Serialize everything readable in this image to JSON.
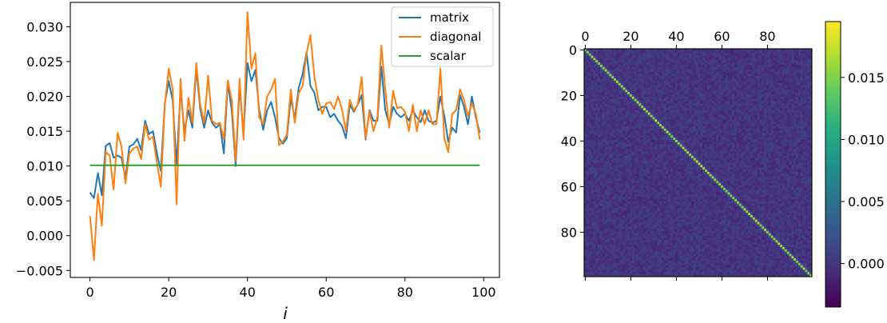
{
  "chart_data": [
    {
      "type": "line",
      "xlabel": "i",
      "ylabel": "",
      "xlim": [
        -5,
        104
      ],
      "ylim": [
        -0.006,
        0.0335
      ],
      "xticks": [
        "0",
        "20",
        "40",
        "60",
        "80",
        "100"
      ],
      "yticks": [
        "−0.005",
        "0.000",
        "0.005",
        "0.010",
        "0.015",
        "0.020",
        "0.025",
        "0.030"
      ],
      "grid": false,
      "legend_position": "top-right",
      "x": [
        0,
        1,
        2,
        3,
        4,
        5,
        6,
        7,
        8,
        9,
        10,
        11,
        12,
        13,
        14,
        15,
        16,
        17,
        18,
        19,
        20,
        21,
        22,
        23,
        24,
        25,
        26,
        27,
        28,
        29,
        30,
        31,
        32,
        33,
        34,
        35,
        36,
        37,
        38,
        39,
        40,
        41,
        42,
        43,
        44,
        45,
        46,
        47,
        48,
        49,
        50,
        51,
        52,
        53,
        54,
        55,
        56,
        57,
        58,
        59,
        60,
        61,
        62,
        63,
        64,
        65,
        66,
        67,
        68,
        69,
        70,
        71,
        72,
        73,
        74,
        75,
        76,
        77,
        78,
        79,
        80,
        81,
        82,
        83,
        84,
        85,
        86,
        87,
        88,
        89,
        90,
        91,
        92,
        93,
        94,
        95,
        96,
        97,
        98,
        99
      ],
      "series": [
        {
          "name": "matrix",
          "color": "#1f77b4",
          "values": [
            0.0062,
            0.0054,
            0.009,
            0.0058,
            0.0129,
            0.0133,
            0.0112,
            0.0115,
            0.0112,
            0.0083,
            0.0128,
            0.0131,
            0.0139,
            0.0123,
            0.0165,
            0.0146,
            0.015,
            0.0118,
            0.0093,
            0.019,
            0.0222,
            0.0194,
            0.0102,
            0.021,
            0.015,
            0.018,
            0.0155,
            0.024,
            0.0182,
            0.0155,
            0.018,
            0.0162,
            0.0155,
            0.016,
            0.0118,
            0.022,
            0.018,
            0.01,
            0.0215,
            0.0145,
            0.0248,
            0.0222,
            0.0238,
            0.018,
            0.0152,
            0.018,
            0.0192,
            0.017,
            0.014,
            0.0132,
            0.014,
            0.0198,
            0.0168,
            0.0212,
            0.0232,
            0.0263,
            0.0215,
            0.0205,
            0.018,
            0.0185,
            0.0185,
            0.017,
            0.0175,
            0.0165,
            0.0158,
            0.014,
            0.0188,
            0.0178,
            0.0188,
            0.0202,
            0.0138,
            0.018,
            0.0165,
            0.0165,
            0.0243,
            0.018,
            0.016,
            0.0185,
            0.0175,
            0.017,
            0.0175,
            0.0165,
            0.018,
            0.017,
            0.0163,
            0.018,
            0.0165,
            0.0162,
            0.0165,
            0.02,
            0.0172,
            0.0135,
            0.0155,
            0.0148,
            0.0202,
            0.0185,
            0.016,
            0.02,
            0.017,
            0.0148
          ]
        },
        {
          "name": "diagonal",
          "color": "#ff7f0e",
          "values": [
            0.0028,
            -0.0035,
            0.006,
            0.0014,
            0.012,
            0.0115,
            0.0066,
            0.0148,
            0.0128,
            0.0075,
            0.0118,
            0.0125,
            0.0128,
            0.011,
            0.016,
            0.0138,
            0.0142,
            0.0105,
            0.007,
            0.0188,
            0.024,
            0.021,
            0.0045,
            0.0225,
            0.0136,
            0.0198,
            0.0162,
            0.0248,
            0.0188,
            0.0162,
            0.023,
            0.0165,
            0.016,
            0.0162,
            0.0138,
            0.0223,
            0.0195,
            0.0107,
            0.0225,
            0.0138,
            0.0321,
            0.024,
            0.0262,
            0.017,
            0.016,
            0.02,
            0.021,
            0.0225,
            0.013,
            0.0135,
            0.0145,
            0.021,
            0.0162,
            0.0205,
            0.0215,
            0.0262,
            0.0288,
            0.0228,
            0.0195,
            0.0175,
            0.019,
            0.0192,
            0.0182,
            0.02,
            0.0182,
            0.015,
            0.0195,
            0.018,
            0.0188,
            0.0228,
            0.014,
            0.0178,
            0.015,
            0.017,
            0.0273,
            0.021,
            0.0155,
            0.0208,
            0.0183,
            0.0185,
            0.0178,
            0.015,
            0.0188,
            0.015,
            0.018,
            0.016,
            0.018,
            0.016,
            0.016,
            0.024,
            0.014,
            0.012,
            0.0175,
            0.018,
            0.021,
            0.0195,
            0.0172,
            0.019,
            0.0175,
            0.0138
          ]
        },
        {
          "name": "scalar",
          "color": "#2ca02c",
          "values": [
            0.0101,
            0.0101,
            0.0101,
            0.0101,
            0.0101,
            0.0101,
            0.0101,
            0.0101,
            0.0101,
            0.0101,
            0.0101,
            0.0101,
            0.0101,
            0.0101,
            0.0101,
            0.0101,
            0.0101,
            0.0101,
            0.0101,
            0.0101,
            0.0101,
            0.0101,
            0.0101,
            0.0101,
            0.0101,
            0.0101,
            0.0101,
            0.0101,
            0.0101,
            0.0101,
            0.0101,
            0.0101,
            0.0101,
            0.0101,
            0.0101,
            0.0101,
            0.0101,
            0.0101,
            0.0101,
            0.0101,
            0.0101,
            0.0101,
            0.0101,
            0.0101,
            0.0101,
            0.0101,
            0.0101,
            0.0101,
            0.0101,
            0.0101,
            0.0101,
            0.0101,
            0.0101,
            0.0101,
            0.0101,
            0.0101,
            0.0101,
            0.0101,
            0.0101,
            0.0101,
            0.0101,
            0.0101,
            0.0101,
            0.0101,
            0.0101,
            0.0101,
            0.0101,
            0.0101,
            0.0101,
            0.0101,
            0.0101,
            0.0101,
            0.0101,
            0.0101,
            0.0101,
            0.0101,
            0.0101,
            0.0101,
            0.0101,
            0.0101,
            0.0101,
            0.0101,
            0.0101,
            0.0101,
            0.0101,
            0.0101,
            0.0101,
            0.0101,
            0.0101,
            0.0101,
            0.0101,
            0.0101,
            0.0101,
            0.0101,
            0.0101,
            0.0101,
            0.0101,
            0.0101,
            0.0101,
            0.0101
          ]
        }
      ]
    },
    {
      "type": "heatmap",
      "rows": 100,
      "cols": 100,
      "xticks": [
        "0",
        "20",
        "40",
        "60",
        "80"
      ],
      "yticks": [
        "0",
        "20",
        "40",
        "60",
        "80"
      ],
      "xtick_position": "top",
      "diagonal_value": 0.016,
      "offdiagonal_mean": 0.0,
      "vmin": -0.0035,
      "vmax": 0.0195,
      "colormap": "viridis",
      "colorbar": {
        "ticks": [
          "0.000",
          "0.005",
          "0.010",
          "0.015"
        ],
        "tick_values": [
          0.0,
          0.005,
          0.01,
          0.015
        ]
      }
    }
  ]
}
